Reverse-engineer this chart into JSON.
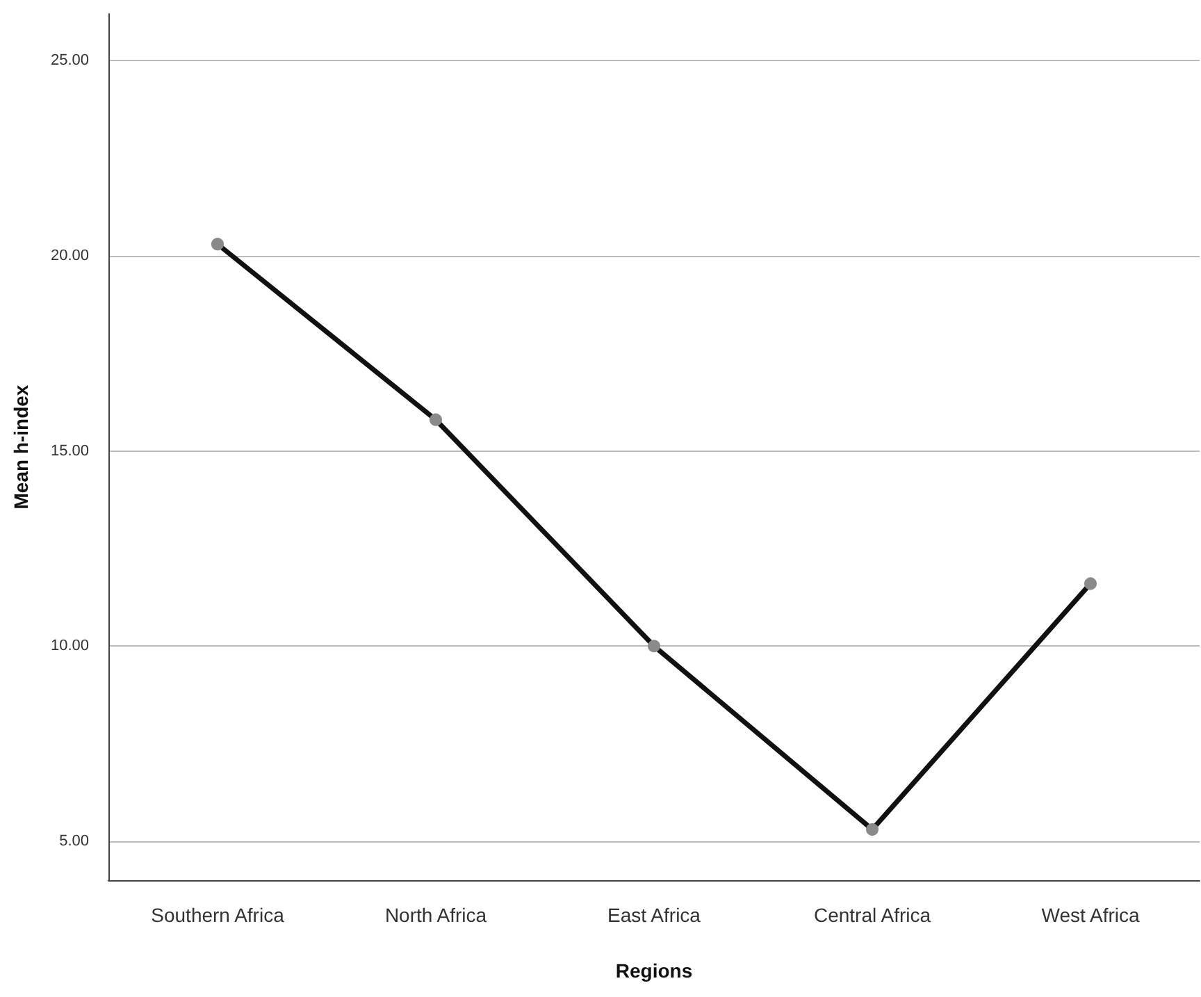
{
  "chart_data": {
    "type": "line",
    "xlabel": "Regions",
    "ylabel": "Mean h-index",
    "categories": [
      "Southern Africa",
      "North Africa",
      "East Africa",
      "Central Africa",
      "West Africa"
    ],
    "series": [
      {
        "color": "#111111",
        "values": [
          20.3,
          15.8,
          10.0,
          5.3,
          11.6
        ]
      }
    ],
    "ylim": [
      4,
      26.2
    ],
    "yticks": [
      {
        "value": 5,
        "label": "5.00"
      },
      {
        "value": 10,
        "label": "10.00"
      },
      {
        "value": 15,
        "label": "15.00"
      },
      {
        "value": 20,
        "label": "20.00"
      },
      {
        "value": 25,
        "label": "25.00"
      }
    ],
    "grid": "y",
    "marker": "circle",
    "line_style": "solid"
  }
}
